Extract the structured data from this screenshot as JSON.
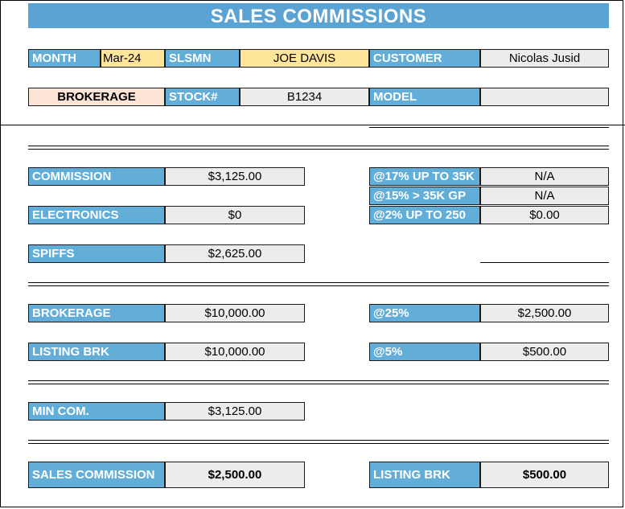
{
  "title": "SALES COMMISSIONS",
  "header": {
    "month_label": "MONTH",
    "month_value": "Mar-24",
    "slsmn_label": "SLSMN",
    "slsmn_value": "JOE DAVIS",
    "customer_label": "CUSTOMER",
    "customer_value": "Nicolas Jusid",
    "brokerage_label": "BROKERAGE",
    "stock_label": "STOCK#",
    "stock_value": "B1234",
    "model_label": "MODEL",
    "model_value": ""
  },
  "commission": {
    "label": "COMMISSION",
    "value": "$3,125.00"
  },
  "electronics": {
    "label": "ELECTRONICS",
    "value": "$0"
  },
  "spiffs": {
    "label": "SPIFFS",
    "value": "$2,625.00"
  },
  "rates": [
    {
      "label": "@17% UP TO 35K",
      "value": "N/A"
    },
    {
      "label": "@15% > 35K GP",
      "value": "N/A"
    },
    {
      "label": "@2% UP TO 250",
      "value": "$0.00"
    }
  ],
  "brokerage": {
    "label": "BROKERAGE",
    "value": "$10,000.00",
    "pct_label": "@25%",
    "pct_value": "$2,500.00"
  },
  "listing_brk": {
    "label": "LISTING BRK",
    "value": "$10,000.00",
    "pct_label": "@5%",
    "pct_value": "$500.00"
  },
  "min_com": {
    "label": "MIN COM.",
    "value": "$3,125.00"
  },
  "totals": {
    "sales_commission_label": "SALES COMMISSION",
    "sales_commission_value": "$2,500.00",
    "listing_brk_label": "LISTING BRK",
    "listing_brk_value": "$500.00"
  },
  "colors": {
    "header_blue": "#5aa3d2",
    "label_blue": "#62aed8",
    "yellow": "#ffe599",
    "pink": "#fce4d6",
    "value_gray": "#ececec"
  }
}
